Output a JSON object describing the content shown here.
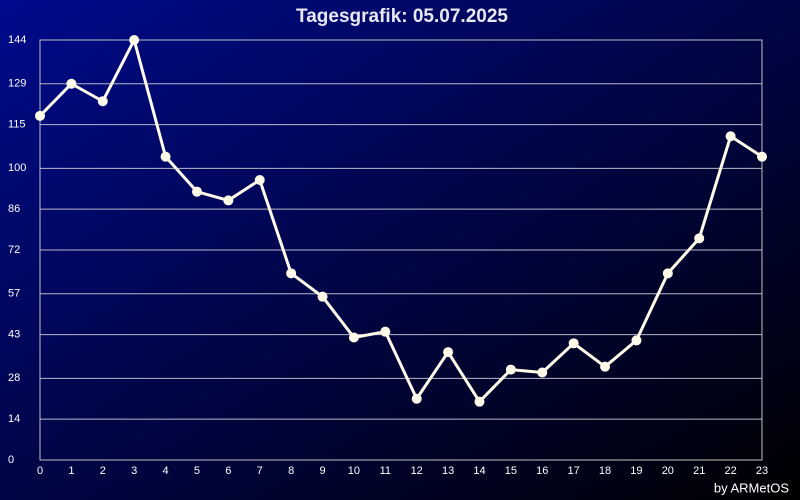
{
  "chart_data": {
    "type": "line",
    "title": "Tagesgrafik: 05.07.2025",
    "credit": "by ARMetOS",
    "x": [
      0,
      1,
      2,
      3,
      4,
      5,
      6,
      7,
      8,
      9,
      10,
      11,
      12,
      13,
      14,
      15,
      16,
      17,
      18,
      19,
      20,
      21,
      22,
      23
    ],
    "series": [
      {
        "color": "#fffbe8",
        "values": [
          118,
          129,
          123,
          144,
          104,
          92,
          89,
          96,
          64,
          56,
          42,
          44,
          21,
          37,
          20,
          31,
          30,
          40,
          32,
          41,
          64,
          76,
          111,
          104
        ]
      }
    ],
    "xlim": [
      0,
      23
    ],
    "xticks": [
      0,
      1,
      2,
      3,
      4,
      5,
      6,
      7,
      8,
      9,
      10,
      11,
      12,
      13,
      14,
      15,
      16,
      17,
      18,
      19,
      20,
      21,
      22,
      23
    ],
    "ylim": [
      0,
      144
    ],
    "yticks": [
      0,
      14,
      28,
      43,
      57,
      72,
      86,
      100,
      115,
      129,
      144
    ],
    "grid": true
  }
}
